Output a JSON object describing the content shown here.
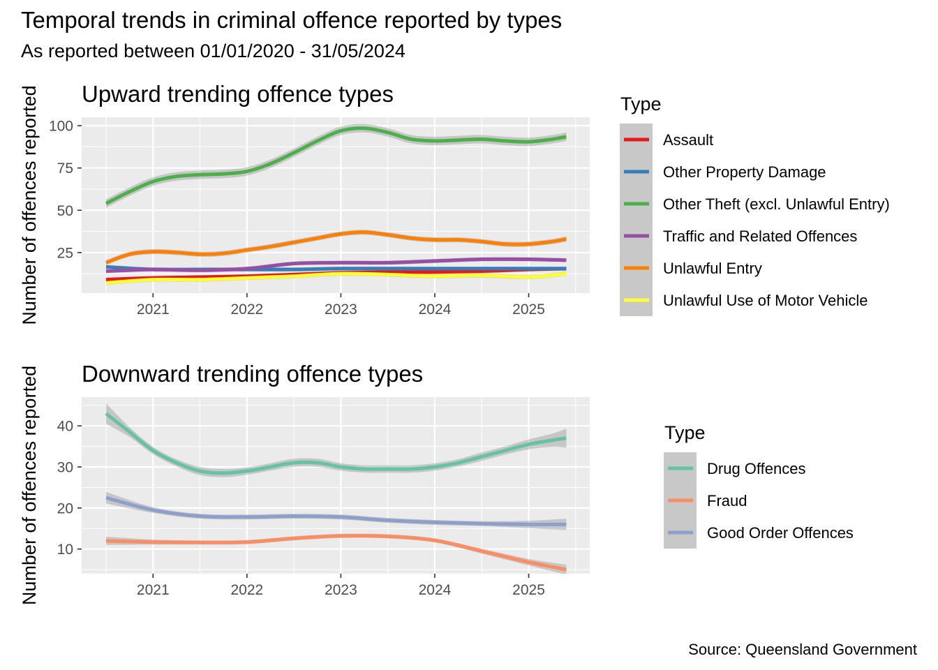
{
  "title": "Temporal trends in criminal offence reported by types",
  "subtitle": "As reported between 01/01/2020 - 31/05/2024",
  "caption": "Source: Queensland Government",
  "chart_data": [
    {
      "type": "line",
      "title": "Upward trending offence types",
      "xlabel": "",
      "ylabel": "Number of offences reported",
      "xlim": [
        2020.24,
        2025.65
      ],
      "ylim": [
        1,
        105
      ],
      "yticks": [
        25,
        50,
        75,
        100
      ],
      "xticks": [
        2021,
        2022,
        2023,
        2024,
        2025
      ],
      "grid": true,
      "smoothed_with_confidence_band": true,
      "legend": {
        "title": "Type",
        "position": "right"
      },
      "series": [
        {
          "name": "Assault",
          "color": "#E41A1C",
          "x": [
            2020.5,
            2021.0,
            2021.5,
            2022.0,
            2022.5,
            2023.0,
            2023.5,
            2024.0,
            2024.5,
            2025.0,
            2025.4
          ],
          "y": [
            9,
            10,
            10.5,
            11,
            12,
            13,
            13.5,
            13.5,
            14,
            15,
            15.5
          ],
          "band": 1.2
        },
        {
          "name": "Other Property Damage",
          "color": "#377EB8",
          "x": [
            2020.5,
            2021.0,
            2021.5,
            2022.0,
            2022.5,
            2023.0,
            2023.5,
            2024.0,
            2024.5,
            2025.0,
            2025.4
          ],
          "y": [
            16.5,
            15,
            15,
            15,
            15,
            15.5,
            15.5,
            15.5,
            15.5,
            15.5,
            15.5
          ],
          "band": 1.2
        },
        {
          "name": "Other Theft (excl. Unlawful Entry)",
          "color": "#4DAF4A",
          "x": [
            2020.5,
            2020.75,
            2021.0,
            2021.25,
            2021.5,
            2021.75,
            2022.0,
            2022.25,
            2022.5,
            2022.75,
            2023.0,
            2023.25,
            2023.5,
            2023.75,
            2024.0,
            2024.25,
            2024.5,
            2024.75,
            2025.0,
            2025.25,
            2025.4
          ],
          "y": [
            54,
            61,
            67,
            70,
            71,
            71.5,
            73,
            77.5,
            84,
            91,
            97,
            98.5,
            96,
            92,
            91,
            91.5,
            92,
            91,
            90.5,
            92,
            93.5
          ],
          "band": 2.5
        },
        {
          "name": "Traffic and Related Offences",
          "color": "#984EA3",
          "x": [
            2020.5,
            2021.0,
            2021.5,
            2022.0,
            2022.5,
            2023.0,
            2023.5,
            2024.0,
            2024.5,
            2025.0,
            2025.4
          ],
          "y": [
            14,
            15,
            14.5,
            15.5,
            18.5,
            19,
            19,
            20,
            21,
            21,
            20.5
          ],
          "band": 1.2
        },
        {
          "name": "Unlawful Entry",
          "color": "#FF7F00",
          "x": [
            2020.5,
            2020.75,
            2021.0,
            2021.25,
            2021.5,
            2021.75,
            2022.0,
            2022.25,
            2022.5,
            2022.75,
            2023.0,
            2023.25,
            2023.5,
            2023.75,
            2024.0,
            2024.25,
            2024.5,
            2024.75,
            2025.0,
            2025.25,
            2025.4
          ],
          "y": [
            19,
            24,
            25.5,
            25,
            24,
            24.5,
            26.5,
            28.5,
            31,
            33.5,
            36,
            37,
            35.5,
            33.5,
            32.5,
            32.5,
            31.5,
            30,
            30,
            31.5,
            33
          ],
          "band": 1.5
        },
        {
          "name": "Unlawful Use of Motor Vehicle",
          "color": "#FFFF33",
          "x": [
            2020.5,
            2021.0,
            2021.5,
            2022.0,
            2022.5,
            2023.0,
            2023.5,
            2024.0,
            2024.5,
            2025.0,
            2025.4
          ],
          "y": [
            7,
            9,
            9,
            10,
            11,
            12.5,
            12,
            11,
            11.5,
            10.5,
            12.5
          ],
          "band": 1.2
        }
      ]
    },
    {
      "type": "line",
      "title": "Downward trending offence types",
      "xlabel": "",
      "ylabel": "Number of offences reported",
      "xlim": [
        2020.24,
        2025.65
      ],
      "ylim": [
        4,
        47
      ],
      "yticks": [
        10,
        20,
        30,
        40
      ],
      "xticks": [
        2021,
        2022,
        2023,
        2024,
        2025
      ],
      "grid": true,
      "smoothed_with_confidence_band": true,
      "legend": {
        "title": "Type",
        "position": "right"
      },
      "series": [
        {
          "name": "Drug Offences",
          "color": "#66C2A5",
          "x": [
            2020.5,
            2020.75,
            2021.0,
            2021.25,
            2021.5,
            2021.75,
            2022.0,
            2022.25,
            2022.5,
            2022.75,
            2023.0,
            2023.25,
            2023.5,
            2023.75,
            2024.0,
            2024.25,
            2024.5,
            2024.75,
            2025.0,
            2025.25,
            2025.4
          ],
          "y": [
            43,
            38.5,
            34,
            31,
            29,
            28.5,
            29,
            30,
            31,
            31,
            30,
            29.5,
            29.5,
            29.5,
            30,
            31,
            32.5,
            34,
            35.5,
            36.5,
            37
          ],
          "band": [
            2.5,
            1.2,
            0.9,
            0.9,
            1.0,
            1.0,
            0.9,
            0.9,
            1.0,
            1.0,
            0.9,
            0.9,
            0.9,
            0.9,
            0.9,
            0.9,
            1.0,
            1.0,
            1.2,
            1.6,
            2.3
          ]
        },
        {
          "name": "Fraud",
          "color": "#FC8D62",
          "x": [
            2020.5,
            2021.0,
            2021.5,
            2022.0,
            2022.5,
            2023.0,
            2023.5,
            2024.0,
            2024.5,
            2025.0,
            2025.4
          ],
          "y": [
            12,
            11.7,
            11.6,
            11.7,
            12.6,
            13.2,
            13.1,
            12.1,
            9.5,
            6.8,
            5
          ],
          "band": [
            1.0,
            0.6,
            0.5,
            0.5,
            0.5,
            0.5,
            0.5,
            0.5,
            0.6,
            0.8,
            1.2
          ]
        },
        {
          "name": "Good Order Offences",
          "color": "#8DA0CB",
          "x": [
            2020.5,
            2021.0,
            2021.5,
            2022.0,
            2022.5,
            2023.0,
            2023.5,
            2024.0,
            2024.5,
            2025.0,
            2025.4
          ],
          "y": [
            22.5,
            19.5,
            18,
            17.8,
            18,
            17.8,
            17,
            16.5,
            16.2,
            16,
            16
          ],
          "band": [
            1.4,
            0.7,
            0.6,
            0.6,
            0.6,
            0.6,
            0.6,
            0.6,
            0.6,
            0.9,
            1.4
          ]
        }
      ]
    }
  ]
}
